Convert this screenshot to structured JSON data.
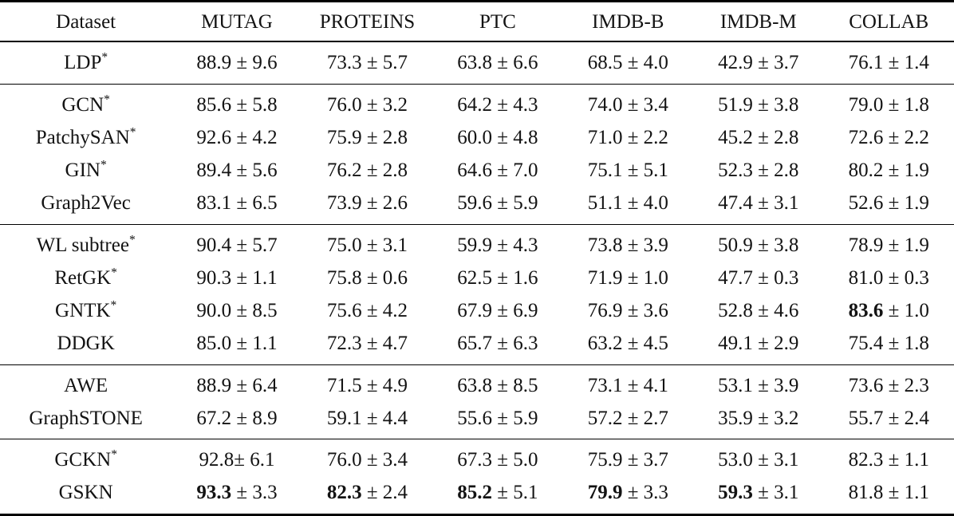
{
  "page": {
    "background_color": "#ffffff",
    "text_color": "#131313",
    "rule_color": "#000000"
  },
  "table": {
    "plus_minus_separator": " ± ",
    "columns": [
      "Dataset",
      "MUTAG",
      "PROTEINS",
      "PTC",
      "IMDB-B",
      "IMDB-M",
      "COLLAB"
    ],
    "groups": [
      {
        "rows": [
          {
            "method": "LDP",
            "sup": "*",
            "cells": [
              {
                "mean": "88.9",
                "std": "9.6"
              },
              {
                "mean": "73.3",
                "std": "5.7"
              },
              {
                "mean": "63.8",
                "std": "6.6"
              },
              {
                "mean": "68.5",
                "std": "4.0"
              },
              {
                "mean": "42.9",
                "std": "3.7"
              },
              {
                "mean": "76.1",
                "std": "1.4"
              }
            ]
          }
        ]
      },
      {
        "rows": [
          {
            "method": "GCN",
            "sup": "*",
            "cells": [
              {
                "mean": "85.6",
                "std": "5.8"
              },
              {
                "mean": "76.0",
                "std": "3.2"
              },
              {
                "mean": "64.2",
                "std": "4.3"
              },
              {
                "mean": "74.0",
                "std": "3.4"
              },
              {
                "mean": "51.9",
                "std": "3.8"
              },
              {
                "mean": "79.0",
                "std": "1.8"
              }
            ]
          },
          {
            "method": "PatchySAN",
            "sup": "*",
            "cells": [
              {
                "mean": "92.6",
                "std": "4.2"
              },
              {
                "mean": "75.9",
                "std": "2.8"
              },
              {
                "mean": "60.0",
                "std": "4.8"
              },
              {
                "mean": "71.0",
                "std": "2.2"
              },
              {
                "mean": "45.2",
                "std": "2.8"
              },
              {
                "mean": "72.6",
                "std": "2.2"
              }
            ]
          },
          {
            "method": "GIN",
            "sup": "*",
            "cells": [
              {
                "mean": "89.4",
                "std": "5.6"
              },
              {
                "mean": "76.2",
                "std": "2.8"
              },
              {
                "mean": "64.6",
                "std": "7.0"
              },
              {
                "mean": "75.1",
                "std": "5.1"
              },
              {
                "mean": "52.3",
                "std": "2.8"
              },
              {
                "mean": "80.2",
                "std": "1.9"
              }
            ]
          },
          {
            "method": "Graph2Vec",
            "sup": "",
            "cells": [
              {
                "mean": "83.1",
                "std": "6.5"
              },
              {
                "mean": "73.9",
                "std": "2.6"
              },
              {
                "mean": "59.6",
                "std": "5.9"
              },
              {
                "mean": "51.1",
                "std": "4.0"
              },
              {
                "mean": "47.4",
                "std": "3.1"
              },
              {
                "mean": "52.6",
                "std": "1.9"
              }
            ]
          }
        ]
      },
      {
        "rows": [
          {
            "method": "WL subtree",
            "sup": "*",
            "cells": [
              {
                "mean": "90.4",
                "std": "5.7"
              },
              {
                "mean": "75.0",
                "std": "3.1"
              },
              {
                "mean": "59.9",
                "std": "4.3"
              },
              {
                "mean": "73.8",
                "std": "3.9"
              },
              {
                "mean": "50.9",
                "std": "3.8"
              },
              {
                "mean": "78.9",
                "std": "1.9"
              }
            ]
          },
          {
            "method": "RetGK",
            "sup": "*",
            "cells": [
              {
                "mean": "90.3",
                "std": "1.1"
              },
              {
                "mean": "75.8",
                "std": "0.6"
              },
              {
                "mean": "62.5",
                "std": "1.6"
              },
              {
                "mean": "71.9",
                "std": "1.0"
              },
              {
                "mean": "47.7",
                "std": "0.3"
              },
              {
                "mean": "81.0",
                "std": "0.3"
              }
            ]
          },
          {
            "method": "GNTK",
            "sup": "*",
            "cells": [
              {
                "mean": "90.0",
                "std": "8.5"
              },
              {
                "mean": "75.6",
                "std": "4.2"
              },
              {
                "mean": "67.9",
                "std": "6.9"
              },
              {
                "mean": "76.9",
                "std": "3.6"
              },
              {
                "mean": "52.8",
                "std": "4.6"
              },
              {
                "mean": "83.6",
                "std": "1.0",
                "bold": true
              }
            ]
          },
          {
            "method": "DDGK",
            "sup": "",
            "cells": [
              {
                "mean": "85.0",
                "std": "1.1"
              },
              {
                "mean": "72.3",
                "std": "4.7"
              },
              {
                "mean": "65.7",
                "std": "6.3"
              },
              {
                "mean": "63.2",
                "std": "4.5"
              },
              {
                "mean": "49.1",
                "std": "2.9"
              },
              {
                "mean": "75.4",
                "std": "1.8"
              }
            ]
          }
        ]
      },
      {
        "rows": [
          {
            "method": "AWE",
            "sup": "",
            "cells": [
              {
                "mean": "88.9",
                "std": "6.4"
              },
              {
                "mean": "71.5",
                "std": "4.9"
              },
              {
                "mean": "63.8",
                "std": "8.5"
              },
              {
                "mean": "73.1",
                "std": "4.1"
              },
              {
                "mean": "53.1",
                "std": "3.9"
              },
              {
                "mean": "73.6",
                "std": "2.3"
              }
            ]
          },
          {
            "method": "GraphSTONE",
            "sup": "",
            "cells": [
              {
                "mean": "67.2",
                "std": "8.9"
              },
              {
                "mean": "59.1",
                "std": "4.4"
              },
              {
                "mean": "55.6",
                "std": "5.9"
              },
              {
                "mean": "57.2",
                "std": "2.7"
              },
              {
                "mean": "35.9",
                "std": "3.2"
              },
              {
                "mean": "55.7",
                "std": "2.4"
              }
            ]
          }
        ]
      },
      {
        "rows": [
          {
            "method": "GCKN",
            "sup": "*",
            "cells": [
              {
                "mean": "92.8",
                "std": "6.1",
                "sep": "± "
              },
              {
                "mean": "76.0",
                "std": "3.4"
              },
              {
                "mean": "67.3",
                "std": "5.0"
              },
              {
                "mean": "75.9",
                "std": "3.7"
              },
              {
                "mean": "53.0",
                "std": "3.1"
              },
              {
                "mean": "82.3",
                "std": "1.1"
              }
            ]
          },
          {
            "method": "GSKN",
            "sup": "",
            "cells": [
              {
                "mean": "93.3",
                "std": "3.3",
                "bold": true
              },
              {
                "mean": "82.3",
                "std": "2.4",
                "bold": true
              },
              {
                "mean": "85.2",
                "std": "5.1",
                "bold": true
              },
              {
                "mean": "79.9",
                "std": "3.3",
                "bold": true
              },
              {
                "mean": "59.3",
                "std": "3.1",
                "bold": true
              },
              {
                "mean": "81.8",
                "std": "1.1"
              }
            ]
          }
        ]
      }
    ]
  }
}
